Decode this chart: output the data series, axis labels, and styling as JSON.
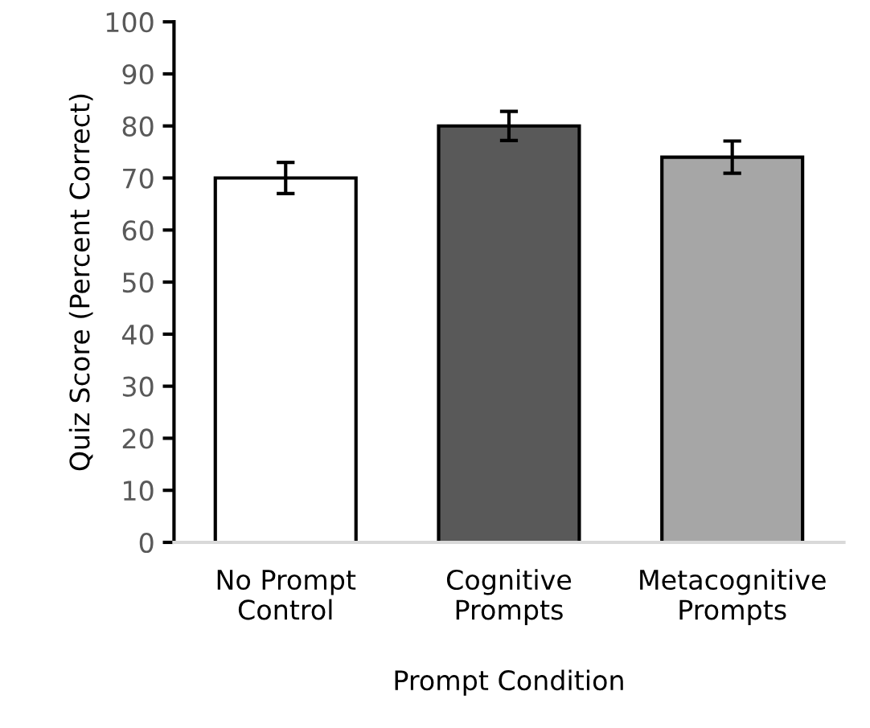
{
  "chart_data": {
    "type": "bar",
    "xlabel": "Prompt Condition",
    "ylabel": "Quiz Score (Percent Correct)",
    "categories": [
      "No Prompt\nControl",
      "Cognitive\nPrompts",
      "Metacognitive\nPrompts"
    ],
    "values": [
      70,
      80,
      74
    ],
    "errors": [
      3,
      2.8,
      3.1
    ],
    "colors": [
      "#ffffff",
      "#595959",
      "#a6a6a6"
    ],
    "ylim": [
      0,
      100
    ],
    "yticks": [
      0,
      10,
      20,
      30,
      40,
      50,
      60,
      70,
      80,
      90,
      100
    ],
    "grid": false
  }
}
